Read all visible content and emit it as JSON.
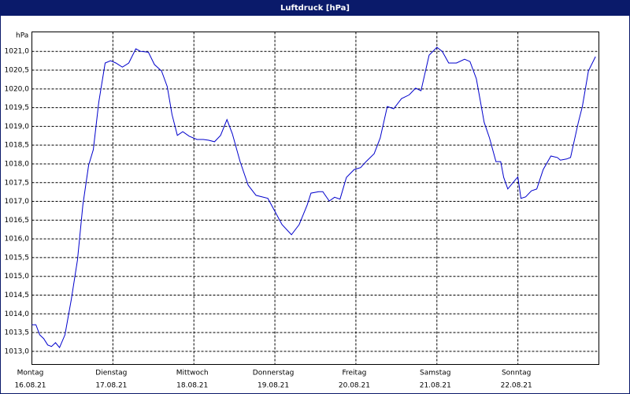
{
  "chart_data": {
    "type": "line",
    "title": "Luftdruck [hPa]",
    "y_label": "hPa",
    "x": [
      0,
      1.2,
      2.3,
      3.5,
      4.7,
      5.8,
      7.0,
      8.2,
      9.8,
      11.7,
      13.5,
      15.1,
      16.8,
      18.2,
      19.8,
      21.7,
      23.3,
      24.9,
      26.8,
      28.7,
      30.8,
      32.2,
      34.5,
      36.3,
      38.4,
      40.1,
      41.5,
      43.1,
      44.7,
      46.6,
      48.9,
      50.8,
      52.4,
      54.1,
      55.9,
      57.8,
      59.4,
      61.7,
      64.1,
      66.4,
      69.9,
      72.2,
      74.1,
      76.9,
      79.2,
      81.6,
      82.7,
      85.0,
      86.2,
      88.1,
      89.7,
      91.3,
      93.2,
      95.5,
      97.4,
      99.0,
      101.4,
      103.2,
      105.3,
      107.2,
      109.5,
      111.8,
      113.7,
      115.3,
      117.7,
      120.0,
      121.6,
      123.5,
      125.8,
      128.2,
      129.8,
      131.7,
      134.0,
      135.6,
      137.5,
      138.9,
      139.8,
      141.0,
      143.3,
      144.0,
      144.9,
      146.3,
      148.0,
      149.6,
      151.5,
      153.8,
      155.7,
      156.6,
      158.4,
      159.6,
      161.9,
      163.1,
      164.9,
      167.0
    ],
    "series": [
      {
        "name": "Luftdruck",
        "color": "#0000cc",
        "values": [
          1013.71,
          1013.71,
          1013.44,
          1013.34,
          1013.17,
          1013.13,
          1013.23,
          1013.1,
          1013.44,
          1014.39,
          1015.44,
          1016.9,
          1017.96,
          1018.38,
          1019.64,
          1020.69,
          1020.75,
          1020.69,
          1020.58,
          1020.69,
          1021.07,
          1021.0,
          1020.98,
          1020.65,
          1020.48,
          1020.06,
          1019.32,
          1018.76,
          1018.86,
          1018.74,
          1018.65,
          1018.65,
          1018.63,
          1018.59,
          1018.76,
          1019.18,
          1018.8,
          1018.06,
          1017.43,
          1017.16,
          1017.08,
          1016.7,
          1016.38,
          1016.11,
          1016.38,
          1016.91,
          1017.22,
          1017.26,
          1017.26,
          1017.01,
          1017.11,
          1017.06,
          1017.64,
          1017.85,
          1017.9,
          1018.06,
          1018.27,
          1018.69,
          1019.53,
          1019.47,
          1019.74,
          1019.84,
          1020.02,
          1019.95,
          1020.9,
          1021.11,
          1021.0,
          1020.69,
          1020.69,
          1020.79,
          1020.73,
          1020.27,
          1019.11,
          1018.69,
          1018.06,
          1018.06,
          1017.64,
          1017.33,
          1017.58,
          1017.65,
          1017.08,
          1017.12,
          1017.28,
          1017.33,
          1017.85,
          1018.21,
          1018.17,
          1018.1,
          1018.13,
          1018.17,
          1019.11,
          1019.53,
          1020.48,
          1020.86
        ]
      }
    ],
    "xlim": [
      0,
      168
    ],
    "xticks": [
      {
        "value": 0,
        "label": "Montag"
      },
      {
        "value": 24,
        "label": "Dienstag"
      },
      {
        "value": 48,
        "label": "Mittwoch"
      },
      {
        "value": 72,
        "label": "Donnerstag"
      },
      {
        "value": 96,
        "label": "Freitag"
      },
      {
        "value": 120,
        "label": "Samstag"
      },
      {
        "value": 144,
        "label": "Sonntag"
      }
    ],
    "xtick_dates": [
      "16.08.21",
      "17.08.21",
      "18.08.21",
      "19.08.21",
      "20.08.21",
      "21.08.21",
      "22.08.21"
    ],
    "ylim": [
      1012.65,
      1021.52
    ],
    "yticks": [
      {
        "value": 1013,
        "label": "1013,0"
      },
      {
        "value": 1013.5,
        "label": "1013,5"
      },
      {
        "value": 1014,
        "label": "1014,0"
      },
      {
        "value": 1014.5,
        "label": "1014,5"
      },
      {
        "value": 1015,
        "label": "1015,0"
      },
      {
        "value": 1015.5,
        "label": "1015,5"
      },
      {
        "value": 1016,
        "label": "1016,0"
      },
      {
        "value": 1016.5,
        "label": "1016,5"
      },
      {
        "value": 1017,
        "label": "1017,0"
      },
      {
        "value": 1017.5,
        "label": "1017,5"
      },
      {
        "value": 1018,
        "label": "1018,0"
      },
      {
        "value": 1018.5,
        "label": "1018,5"
      },
      {
        "value": 1019,
        "label": "1019,0"
      },
      {
        "value": 1019.5,
        "label": "1019,5"
      },
      {
        "value": 1020,
        "label": "1020,0"
      },
      {
        "value": 1020.5,
        "label": "1020,5"
      },
      {
        "value": 1021,
        "label": "1021,0"
      }
    ],
    "grid": true
  }
}
